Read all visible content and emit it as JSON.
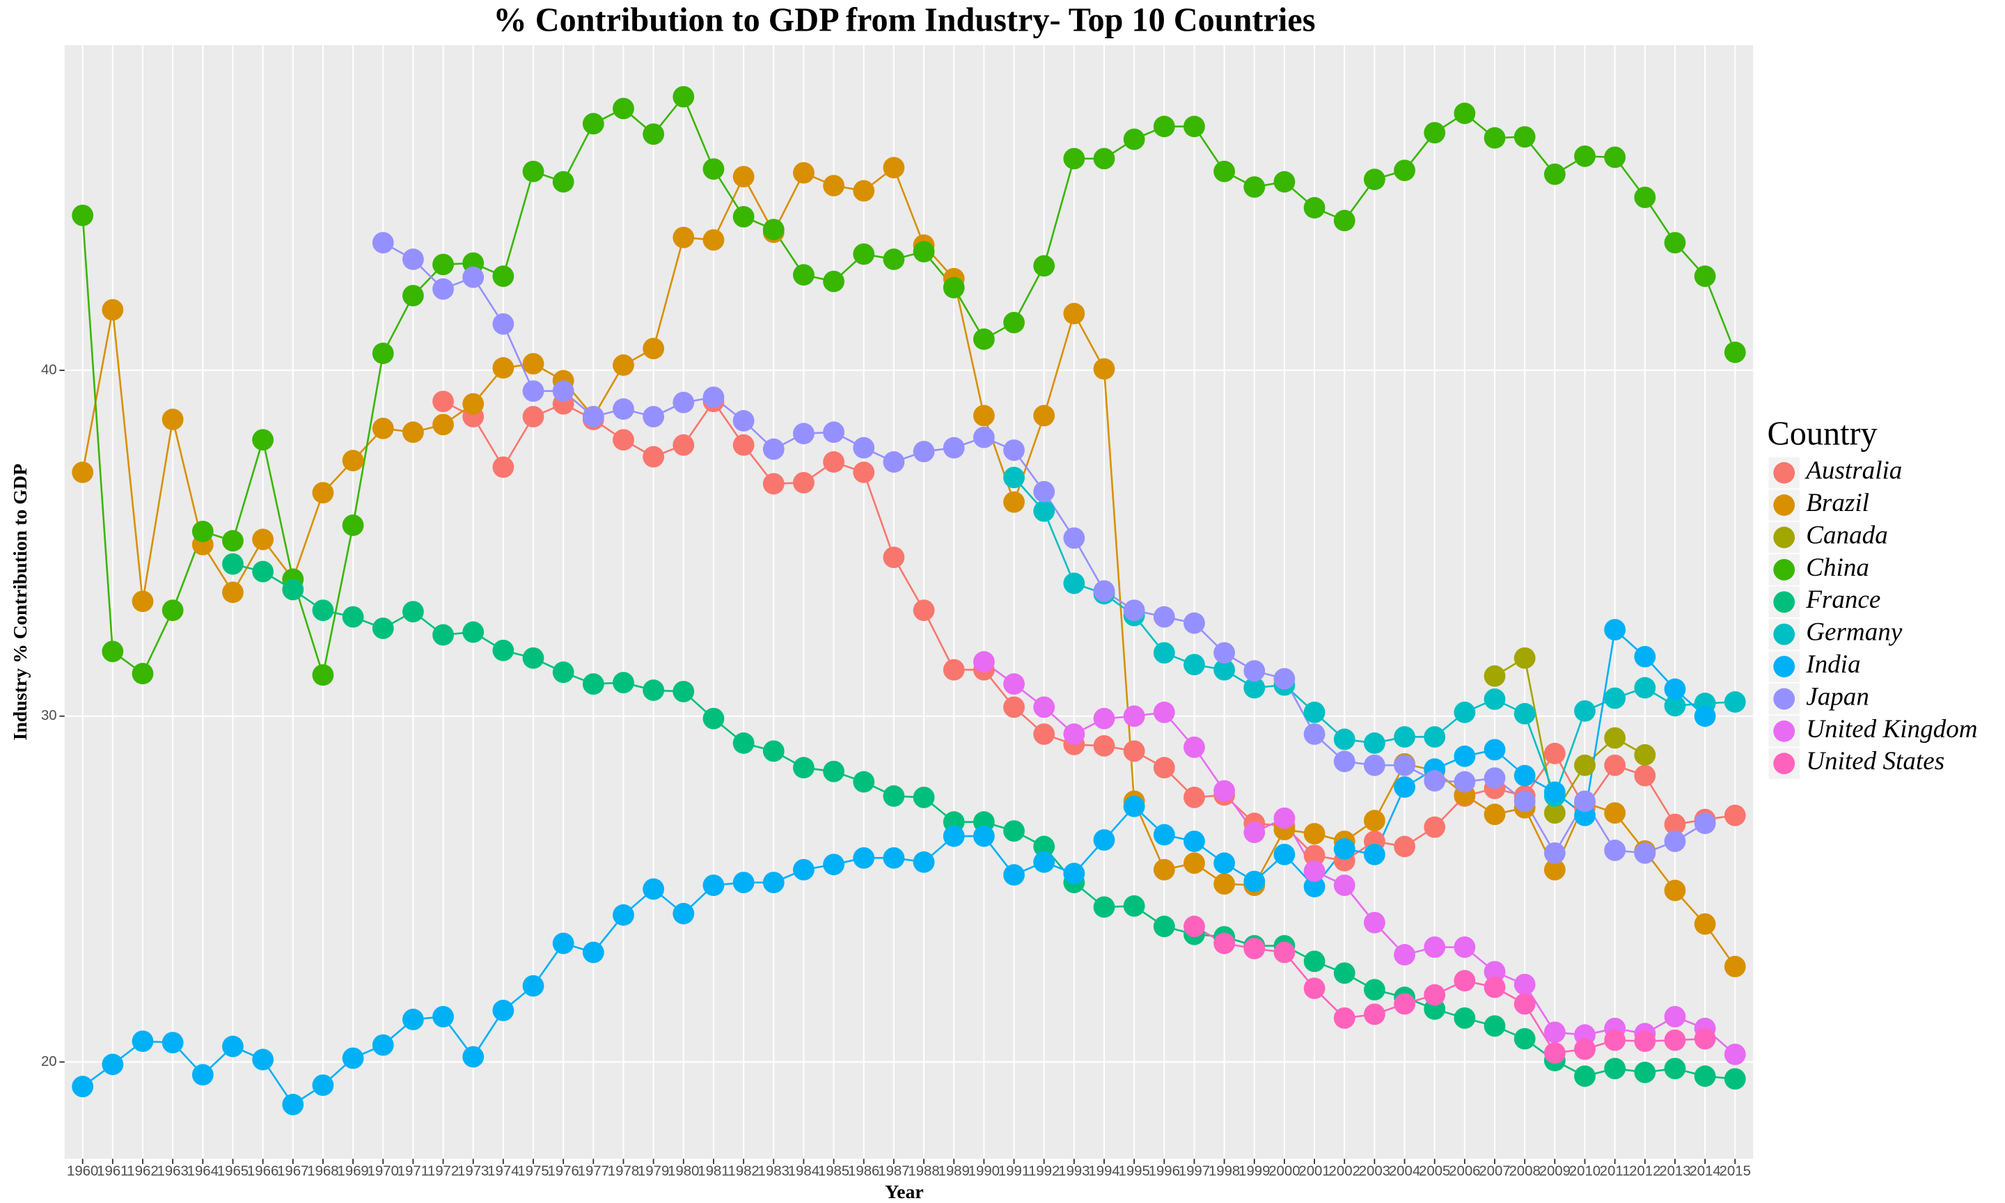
{
  "chart_data": {
    "type": "line",
    "title": "% Contribution to GDP from Industry- Top 10 Countries",
    "x_label": "Year",
    "y_label": "Industry % Contribution to GDP",
    "legend_title": "Country",
    "legend_position": "right",
    "grid": true,
    "categories": [
      1960,
      1961,
      1962,
      1963,
      1964,
      1965,
      1966,
      1967,
      1968,
      1969,
      1970,
      1971,
      1972,
      1973,
      1974,
      1975,
      1976,
      1977,
      1978,
      1979,
      1980,
      1981,
      1982,
      1983,
      1984,
      1985,
      1986,
      1987,
      1988,
      1989,
      1990,
      1991,
      1992,
      1993,
      1994,
      1995,
      1996,
      1997,
      1998,
      1999,
      2000,
      2001,
      2002,
      2003,
      2004,
      2005,
      2006,
      2007,
      2008,
      2009,
      2010,
      2011,
      2012,
      2013,
      2014,
      2015
    ],
    "ylim": [
      17.2,
      49.4
    ],
    "yticks": [
      20,
      30,
      40
    ],
    "series": [
      {
        "name": "Australia",
        "color": "#F8766D",
        "values": [
          null,
          null,
          null,
          null,
          null,
          null,
          null,
          null,
          null,
          null,
          null,
          null,
          39.1,
          38.66,
          37.2,
          38.66,
          39.03,
          38.58,
          37.99,
          37.5,
          37.84,
          39.1,
          37.84,
          36.72,
          36.75,
          37.35,
          37.05,
          34.59,
          33.06,
          31.34,
          31.34,
          30.26,
          29.48,
          29.18,
          29.14,
          28.99,
          28.51,
          27.65,
          27.72,
          26.9,
          26.83,
          25.97,
          25.82,
          26.38,
          26.23,
          26.79,
          27.69,
          27.91,
          27.69,
          28.92,
          27.35,
          28.58,
          28.28,
          26.87,
          27.01,
          27.13
        ]
      },
      {
        "name": "Brazil",
        "color": "#D89000",
        "values": [
          37.05,
          41.75,
          33.32,
          38.58,
          34.96,
          33.58,
          35.11,
          33.96,
          36.46,
          37.39,
          38.32,
          38.21,
          38.43,
          39.03,
          40.07,
          40.19,
          39.7,
          38.66,
          40.15,
          40.63,
          43.84,
          43.77,
          45.6,
          43.99,
          45.71,
          45.34,
          45.19,
          45.86,
          43.62,
          42.65,
          38.69,
          36.19,
          38.69,
          41.64,
          40.04,
          27.54,
          25.56,
          25.75,
          25.15,
          25.11,
          26.72,
          26.6,
          26.38,
          26.98,
          28.62,
          28.43,
          27.72,
          27.16,
          27.35,
          25.56,
          27.5,
          27.2,
          26.1,
          24.96,
          23.99,
          22.76
        ]
      },
      {
        "name": "Canada",
        "color": "#A3A500",
        "values": [
          null,
          null,
          null,
          null,
          null,
          null,
          null,
          null,
          null,
          null,
          null,
          null,
          null,
          null,
          null,
          null,
          null,
          null,
          null,
          null,
          null,
          null,
          null,
          null,
          null,
          null,
          null,
          null,
          null,
          null,
          null,
          null,
          null,
          null,
          null,
          null,
          null,
          null,
          null,
          null,
          null,
          null,
          null,
          null,
          null,
          null,
          null,
          31.16,
          31.68,
          27.2,
          28.58,
          29.37,
          28.88,
          null,
          null,
          null
        ]
      },
      {
        "name": "China",
        "color": "#39B600",
        "values": [
          44.48,
          31.87,
          31.23,
          33.06,
          35.34,
          35.07,
          37.99,
          33.96,
          31.19,
          35.52,
          40.49,
          42.16,
          43.06,
          43.1,
          42.72,
          45.75,
          45.45,
          47.13,
          47.57,
          46.83,
          47.91,
          45.82,
          44.44,
          44.07,
          42.76,
          42.57,
          43.36,
          43.21,
          43.43,
          42.39,
          40.9,
          41.38,
          43.02,
          46.12,
          46.12,
          46.68,
          47.05,
          47.05,
          45.75,
          45.3,
          45.45,
          44.7,
          44.33,
          45.52,
          45.78,
          46.87,
          47.43,
          46.72,
          46.75,
          45.67,
          46.19,
          46.16,
          45.0,
          43.69,
          42.72,
          40.52
        ]
      },
      {
        "name": "France",
        "color": "#00BF7D",
        "values": [
          null,
          null,
          null,
          null,
          null,
          34.4,
          34.18,
          33.66,
          33.06,
          32.87,
          32.54,
          33.02,
          32.35,
          32.43,
          31.9,
          31.68,
          31.27,
          30.93,
          30.97,
          30.75,
          30.71,
          29.93,
          29.22,
          28.99,
          28.51,
          28.4,
          28.1,
          27.69,
          27.65,
          26.94,
          26.94,
          26.68,
          26.23,
          25.19,
          24.48,
          24.51,
          23.92,
          23.69,
          23.62,
          23.36,
          23.36,
          22.91,
          22.57,
          22.09,
          21.87,
          21.53,
          21.27,
          21.04,
          20.67,
          20.04,
          19.59,
          19.81,
          19.7,
          19.81,
          19.59,
          19.51
        ]
      },
      {
        "name": "Germany",
        "color": "#00BFC4",
        "values": [
          null,
          null,
          null,
          null,
          null,
          null,
          null,
          null,
          null,
          null,
          null,
          null,
          null,
          null,
          null,
          null,
          null,
          null,
          null,
          null,
          null,
          null,
          null,
          null,
          null,
          null,
          null,
          null,
          null,
          null,
          null,
          36.9,
          35.93,
          33.84,
          33.54,
          32.91,
          31.83,
          31.49,
          31.34,
          30.82,
          30.9,
          30.11,
          29.33,
          29.22,
          29.4,
          29.4,
          30.11,
          30.49,
          30.07,
          27.69,
          30.15,
          30.52,
          30.82,
          30.3,
          30.37,
          30.41
        ]
      },
      {
        "name": "India",
        "color": "#00B0F6",
        "values": [
          19.29,
          19.93,
          20.6,
          20.56,
          19.63,
          20.45,
          20.07,
          18.77,
          19.33,
          20.11,
          20.49,
          21.23,
          21.31,
          20.15,
          21.49,
          22.2,
          23.43,
          23.17,
          24.25,
          25.0,
          24.29,
          25.11,
          25.19,
          25.19,
          25.56,
          25.71,
          25.9,
          25.9,
          25.78,
          26.53,
          26.53,
          25.41,
          25.78,
          25.45,
          26.42,
          27.39,
          26.57,
          26.38,
          25.75,
          25.22,
          26.0,
          25.07,
          26.16,
          26.0,
          27.95,
          28.47,
          28.84,
          29.03,
          28.28,
          27.8,
          27.13,
          32.5,
          31.72,
          30.78,
          30.0,
          null
        ]
      },
      {
        "name": "Japan",
        "color": "#9590FF",
        "values": [
          null,
          null,
          null,
          null,
          null,
          null,
          null,
          null,
          null,
          null,
          43.69,
          43.21,
          42.35,
          42.69,
          41.34,
          39.4,
          39.4,
          38.66,
          38.88,
          38.66,
          39.07,
          39.22,
          38.54,
          37.72,
          38.17,
          38.21,
          37.76,
          37.35,
          37.65,
          37.76,
          38.06,
          37.69,
          36.49,
          35.15,
          33.62,
          33.06,
          32.87,
          32.69,
          31.83,
          31.31,
          31.08,
          29.48,
          28.69,
          28.58,
          28.58,
          28.13,
          28.1,
          28.21,
          27.54,
          26.04,
          27.54,
          26.12,
          26.04,
          26.38,
          26.9,
          null
        ]
      },
      {
        "name": "United Kingdom",
        "color": "#E76BF3",
        "values": [
          null,
          null,
          null,
          null,
          null,
          null,
          null,
          null,
          null,
          null,
          null,
          null,
          null,
          null,
          null,
          null,
          null,
          null,
          null,
          null,
          null,
          null,
          null,
          null,
          null,
          null,
          null,
          null,
          null,
          null,
          31.57,
          30.93,
          30.26,
          29.48,
          29.93,
          30.0,
          30.11,
          29.1,
          27.84,
          26.64,
          27.05,
          25.52,
          25.11,
          24.03,
          23.1,
          23.32,
          23.32,
          22.61,
          22.24,
          20.86,
          20.78,
          20.97,
          20.82,
          21.31,
          20.97,
          20.22
        ]
      },
      {
        "name": "United States",
        "color": "#FF62BC",
        "values": [
          null,
          null,
          null,
          null,
          null,
          null,
          null,
          null,
          null,
          null,
          null,
          null,
          null,
          null,
          null,
          null,
          null,
          null,
          null,
          null,
          null,
          null,
          null,
          null,
          null,
          null,
          null,
          null,
          null,
          null,
          null,
          null,
          null,
          null,
          null,
          null,
          null,
          23.92,
          23.43,
          23.28,
          23.17,
          22.13,
          21.27,
          21.38,
          21.68,
          21.94,
          22.35,
          22.16,
          21.68,
          20.26,
          20.37,
          20.63,
          20.6,
          20.63,
          20.67,
          null
        ]
      }
    ]
  }
}
